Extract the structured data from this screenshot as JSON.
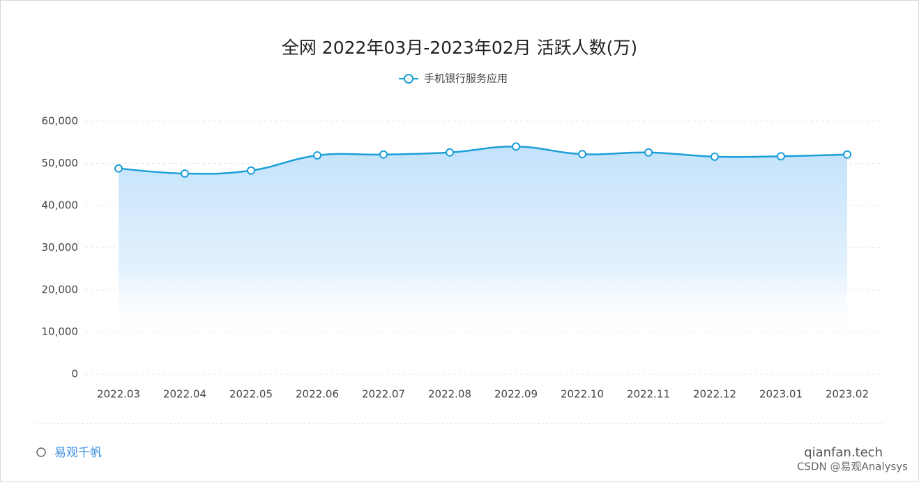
{
  "chart_data": {
    "type": "line",
    "title": "全网 2022年03月-2023年02月 活跃人数(万)",
    "categories": [
      "2022.03",
      "2022.04",
      "2022.05",
      "2022.06",
      "2022.07",
      "2022.08",
      "2022.09",
      "2022.10",
      "2022.11",
      "2022.12",
      "2023.01",
      "2023.02"
    ],
    "series": [
      {
        "name": "手机银行服务应用",
        "color": "#1a9fd6",
        "values": [
          48800,
          47600,
          48300,
          51900,
          52100,
          52600,
          54000,
          52200,
          52600,
          51600,
          51700,
          52100
        ]
      }
    ],
    "ylim": [
      0,
      60000
    ],
    "yticks": [
      0,
      {
        "value": 10000,
        "label": "10,000"
      },
      {
        "value": 20000,
        "label": "20,000"
      },
      {
        "value": 30000,
        "label": "30,000"
      },
      {
        "value": 40000,
        "label": "40,000"
      },
      {
        "value": 50000,
        "label": "50,000"
      },
      {
        "value": 60000,
        "label": "60,000"
      }
    ],
    "grid": true,
    "legend": "top"
  },
  "footer": {
    "brand": "易观千帆",
    "site": "qianfan.tech",
    "credit": "CSDN @易观Analysys"
  }
}
